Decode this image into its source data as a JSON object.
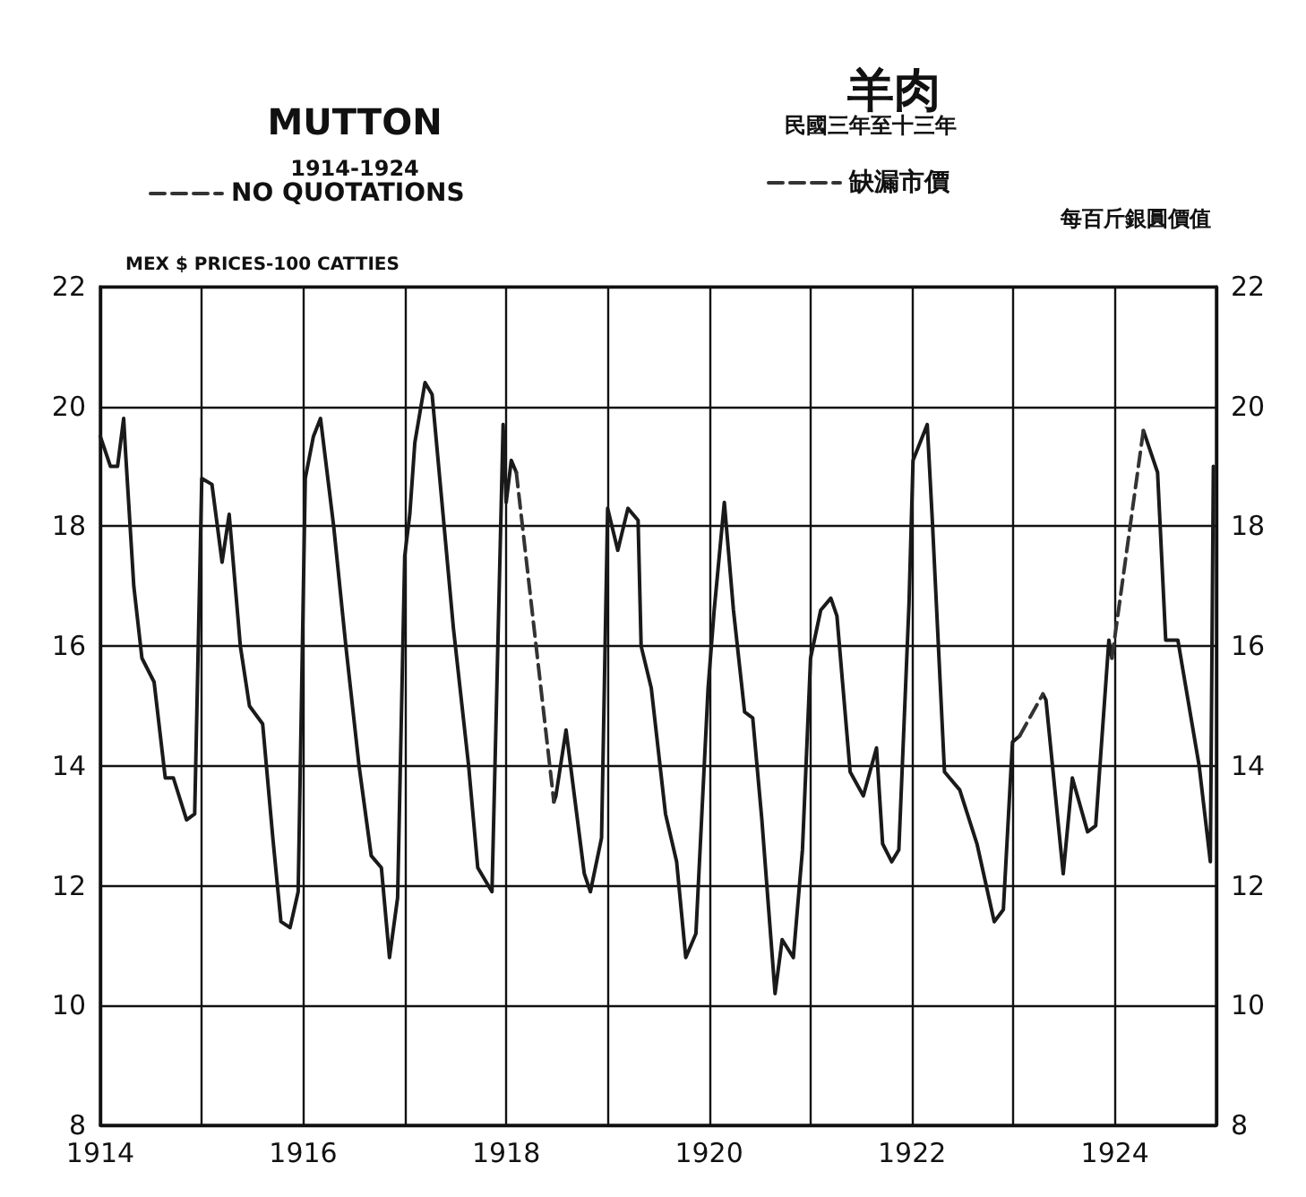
{
  "chart_data": {
    "type": "line",
    "title": "MUTTON",
    "subtitle": "1914-1924",
    "ylabel": "MEX $ PRICES-100 CATTIES",
    "y2label": "每百斤銀圓價值",
    "annotations": [
      "羊肉",
      "民國三年至十三年",
      "缺漏市價"
    ],
    "xlim": [
      1914,
      1925
    ],
    "xticks": [
      1914,
      {
        "value": 1915,
        "label": null
      },
      1916,
      {
        "value": 1917,
        "label": null
      },
      1918,
      {
        "value": 1919,
        "label": null
      },
      1920,
      {
        "value": 1921,
        "label": null
      },
      1922,
      {
        "value": 1923,
        "label": null
      },
      1924,
      {
        "value": 1925,
        "label": null
      }
    ],
    "ylim": [
      8,
      22
    ],
    "yticks": [
      8,
      10,
      12,
      14,
      16,
      18,
      20,
      22
    ],
    "y2lim": [
      8,
      22
    ],
    "y2ticks": [
      8,
      10,
      12,
      14,
      16,
      18,
      20,
      22
    ],
    "grid": true,
    "legend": "top",
    "marker": "none",
    "series": [
      {
        "color": "#1a1a1a",
        "line_style": "solid",
        "x": [
          1914,
          1914.1,
          1914.17,
          1914.23,
          1914.25,
          1914.33,
          1914.41,
          1914.53,
          1914.64,
          1914.72,
          1914.85,
          1914.93,
          1915,
          1915.1,
          1915.2,
          1915.27,
          1915.38,
          1915.47,
          1915.6,
          1915.7,
          1915.78,
          1915.87,
          1915.95,
          1916.02,
          1916.1,
          1916.17,
          1916.3,
          1916.42,
          1916.55,
          1916.67,
          1916.77,
          1916.85,
          1916.93,
          1917,
          1917.05,
          1917.1,
          1917.2,
          1917.27,
          1917.48,
          1917.63,
          1917.72,
          1917.86,
          1917.97,
          1918,
          1918.05,
          1918.1,
          1918.3,
          1918.47,
          1918.49,
          1918.59,
          1918.77,
          1918.83,
          1918.94,
          1919,
          1919.1,
          1919.2,
          1919.3,
          1919.33,
          1919.43,
          1919.57,
          1919.68,
          1919.77,
          1919.87,
          1919.99,
          1920.05,
          1920.15,
          1920.24,
          1920.35,
          1920.43,
          1920.52,
          1920.65,
          1920.72,
          1920.83,
          1920.92,
          1921,
          1921.1,
          1921.2,
          1921.26,
          1921.39,
          1921.52,
          1921.65,
          1921.71,
          1921.8,
          1921.87,
          1921.97,
          1922.01,
          1922.15,
          1922.2,
          1922.32,
          1922.47,
          1922.64,
          1922.81,
          1922.9,
          1922.99,
          1923.06,
          1923.2,
          1923.29,
          1923.32,
          1923.49,
          1923.58,
          1923.73,
          1923.81,
          1923.94,
          1923.97,
          1924.1,
          1924.28,
          1924.42,
          1924.5,
          1924.62,
          1924.83,
          1924.94,
          1924.97
        ],
        "values": [
          19.5,
          19,
          19,
          19.8,
          19.2,
          17,
          15.8,
          15.4,
          13.8,
          13.8,
          13.1,
          13.2,
          18.8,
          18.7,
          17.4,
          18.2,
          16,
          15,
          14.7,
          12.8,
          11.4,
          11.3,
          11.9,
          18.8,
          19.5,
          19.8,
          18,
          16,
          14,
          12.5,
          12.3,
          10.8,
          11.8,
          17.5,
          18.2,
          19.4,
          20.4,
          20.2,
          16.3,
          14,
          12.3,
          11.9,
          19.7,
          18.4,
          19.1,
          18.9,
          null,
          13.4,
          13.5,
          14.6,
          12.2,
          11.9,
          12.8,
          18.3,
          17.6,
          18.3,
          18.1,
          16,
          15.3,
          13.2,
          12.4,
          10.8,
          11.2,
          15.3,
          16.6,
          18.4,
          16.6,
          14.9,
          14.8,
          13.1,
          10.2,
          11.1,
          10.8,
          12.6,
          15.8,
          16.6,
          16.8,
          16.5,
          13.9,
          13.5,
          14.3,
          12.7,
          12.4,
          12.6,
          16.7,
          19.1,
          19.7,
          18.1,
          13.9,
          13.6,
          12.7,
          11.4,
          11.6,
          14.4,
          14.5,
          null,
          15.2,
          15.1,
          12.2,
          13.8,
          12.9,
          13,
          16.1,
          15.8,
          null,
          19.6,
          18.9,
          16.1,
          16.1,
          14,
          12.4,
          19
        ]
      },
      {
        "name": "NO QUOTATIONS",
        "color": "#333333",
        "line_style": "dashed",
        "x": [
          1918.1,
          1918.47,
          1918.6,
          1923.06,
          1923.29,
          1923.5,
          1923.97,
          1924.28
        ],
        "values": [
          18.9,
          13.4,
          null,
          14.5,
          15.2,
          null,
          15.8,
          19.6
        ]
      }
    ]
  }
}
